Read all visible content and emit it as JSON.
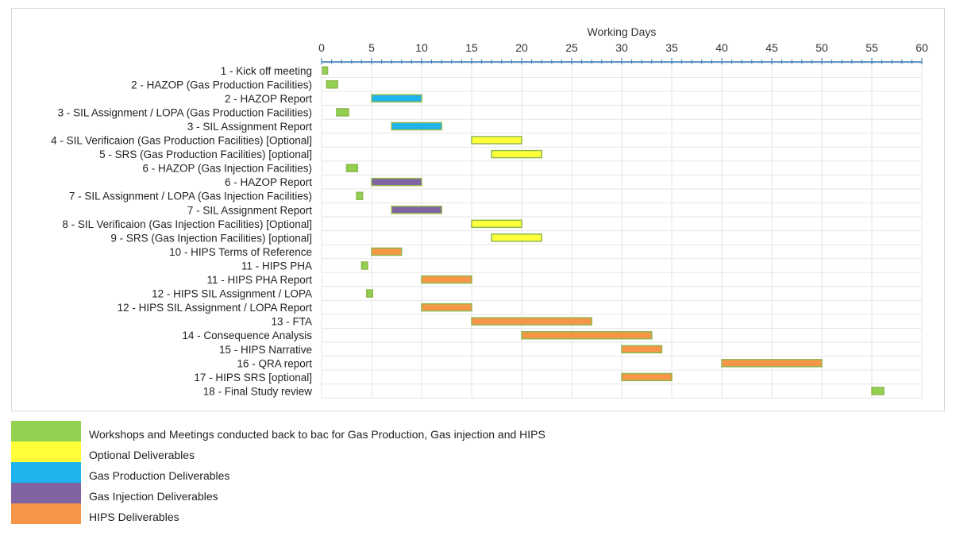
{
  "chart_data": {
    "type": "bar",
    "subtype": "gantt",
    "title": "",
    "xlabel": "Working Days",
    "ylabel": "",
    "xlim": [
      0,
      60
    ],
    "x_ticks": [
      "0",
      "5",
      "10",
      "15",
      "20",
      "25",
      "30",
      "35",
      "40",
      "45",
      "50",
      "55",
      "60"
    ],
    "grid": true,
    "legend_position": "bottom-left",
    "categories": [
      "1 - Kick off meeting",
      "2 - HAZOP (Gas Production Facilities)",
      "2 - HAZOP Report",
      "3 - SIL Assignment / LOPA (Gas Production Facilities)",
      "3 - SIL Assignment Report",
      "4 - SIL Verificaion (Gas Production Facilities) [Optional]",
      "5 - SRS (Gas Production Facilities) [optional]",
      "6 - HAZOP (Gas Injection Facilities)",
      "6 - HAZOP Report",
      "7 - SIL Assignment / LOPA (Gas Injection Facilities)",
      "7 - SIL Assignment Report",
      "8 - SIL Verificaion (Gas Injection Facilities) [Optional]",
      "9 - SRS (Gas Injection Facilities) [optional]",
      "10 - HIPS Terms of Reference",
      "11 - HIPS PHA",
      "11 - HIPS PHA Report",
      "12 - HIPS SIL Assignment / LOPA",
      "12 - HIPS SIL Assignment / LOPA Report",
      "13 - FTA",
      "14 - Consequence Analysis",
      "15 - HIPS Narrative",
      "16 - QRA report",
      "17 - HIPS SRS [optional]",
      "18 - Final Study review"
    ],
    "bars": [
      {
        "start": 0.1,
        "end": 0.6,
        "group": 0
      },
      {
        "start": 0.5,
        "end": 1.6,
        "group": 0
      },
      {
        "start": 5,
        "end": 10,
        "group": 2
      },
      {
        "start": 1.5,
        "end": 2.7,
        "group": 0
      },
      {
        "start": 7,
        "end": 12,
        "group": 2
      },
      {
        "start": 15,
        "end": 20,
        "group": 1
      },
      {
        "start": 17,
        "end": 22,
        "group": 1
      },
      {
        "start": 2.5,
        "end": 3.6,
        "group": 0
      },
      {
        "start": 5,
        "end": 10,
        "group": 3
      },
      {
        "start": 3.5,
        "end": 4.1,
        "group": 0
      },
      {
        "start": 7,
        "end": 12,
        "group": 3
      },
      {
        "start": 15,
        "end": 20,
        "group": 1
      },
      {
        "start": 17,
        "end": 22,
        "group": 1
      },
      {
        "start": 5,
        "end": 8,
        "group": 4
      },
      {
        "start": 4,
        "end": 4.6,
        "group": 0
      },
      {
        "start": 10,
        "end": 15,
        "group": 4
      },
      {
        "start": 4.5,
        "end": 5.1,
        "group": 0
      },
      {
        "start": 10,
        "end": 15,
        "group": 4
      },
      {
        "start": 15,
        "end": 27,
        "group": 4
      },
      {
        "start": 20,
        "end": 33,
        "group": 4
      },
      {
        "start": 30,
        "end": 34,
        "group": 4
      },
      {
        "start": 40,
        "end": 50,
        "group": 4
      },
      {
        "start": 30,
        "end": 35,
        "group": 4
      },
      {
        "start": 55,
        "end": 56.2,
        "group": 0
      }
    ],
    "series": [
      {
        "name": "Workshops and Meetings conducted back to bac for Gas Production, Gas injection and HIPS",
        "color": "#92d050"
      },
      {
        "name": "Optional Deliverables",
        "color": "#ffff3a"
      },
      {
        "name": "Gas Production Deliverables",
        "color": "#1fb4ec"
      },
      {
        "name": "Gas Injection Deliverables",
        "color": "#8064a2"
      },
      {
        "name": "HIPS Deliverables",
        "color": "#f79646"
      }
    ],
    "bar_border_color": "#8fb84f",
    "axis_color": "#2e75b6",
    "grid_color": "#e6e6e6"
  }
}
